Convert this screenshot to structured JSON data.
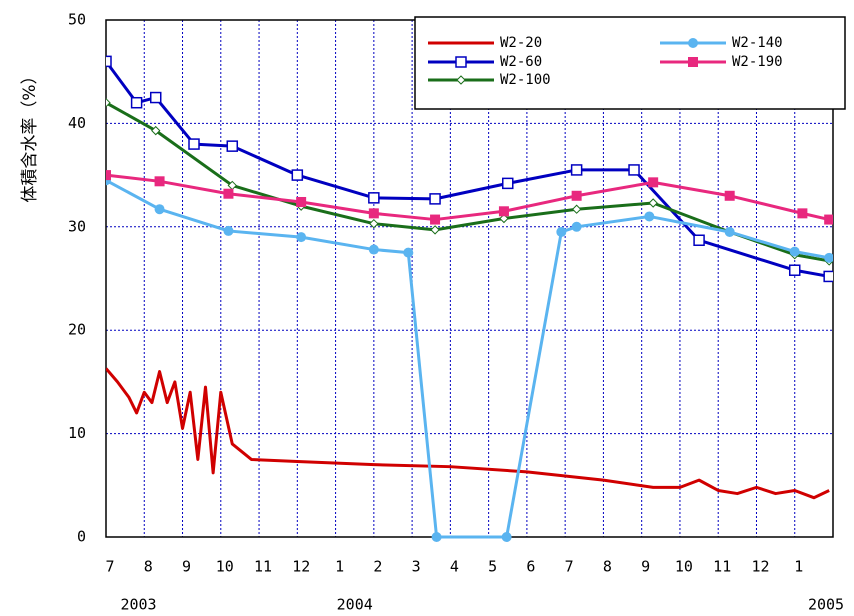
{
  "chart_data": {
    "type": "line",
    "y_label": "体積含水率（%）",
    "xlim": [
      0,
      19
    ],
    "ylim": [
      0,
      50
    ],
    "xticks": [
      {
        "value": 0,
        "label": "7"
      },
      {
        "value": 1,
        "label": "8"
      },
      {
        "value": 2,
        "label": "9"
      },
      {
        "value": 3,
        "label": "10"
      },
      {
        "value": 4,
        "label": "11"
      },
      {
        "value": 5,
        "label": "12"
      },
      {
        "value": 6,
        "label": "1"
      },
      {
        "value": 7,
        "label": "2"
      },
      {
        "value": 8,
        "label": "3"
      },
      {
        "value": 9,
        "label": "4"
      },
      {
        "value": 10,
        "label": "5"
      },
      {
        "value": 11,
        "label": "6"
      },
      {
        "value": 12,
        "label": "7"
      },
      {
        "value": 13,
        "label": "8"
      },
      {
        "value": 14,
        "label": "9"
      },
      {
        "value": 15,
        "label": "10"
      },
      {
        "value": 16,
        "label": "11"
      },
      {
        "value": 17,
        "label": "12"
      },
      {
        "value": 18,
        "label": "1"
      }
    ],
    "yticks": [
      0,
      10,
      20,
      30,
      40,
      50
    ],
    "year_labels": [
      {
        "x": 0.85,
        "label": "2003"
      },
      {
        "x": 6.5,
        "label": "2004"
      },
      {
        "x": 18.9,
        "label": "2005"
      }
    ],
    "grid": true,
    "series": [
      {
        "name": "W2-20",
        "color": "#d00000",
        "marker": "none",
        "x": [
          0,
          0.3,
          0.6,
          0.8,
          1.0,
          1.2,
          1.4,
          1.6,
          1.8,
          2.0,
          2.2,
          2.4,
          2.6,
          2.8,
          3.0,
          3.3,
          3.8,
          5,
          7,
          9,
          11,
          13,
          14.3,
          15,
          15.5,
          16,
          16.5,
          17,
          17.5,
          18,
          18.5,
          18.9
        ],
        "values": [
          16.3,
          15,
          13.5,
          12,
          14,
          13,
          16,
          13,
          15,
          10.5,
          14,
          7.5,
          14.5,
          6.2,
          14,
          9,
          7.5,
          7.3,
          7,
          6.8,
          6.3,
          5.5,
          4.8,
          4.8,
          5.5,
          4.5,
          4.2,
          4.8,
          4.2,
          4.5,
          3.8,
          4.5
        ]
      },
      {
        "name": "W2-60",
        "color": "#0000c0",
        "marker": "open-square",
        "x": [
          0,
          0.8,
          1.3,
          2.3,
          3.3,
          5.0,
          7.0,
          8.6,
          10.5,
          12.3,
          13.8,
          15.5,
          18.0,
          18.9
        ],
        "values": [
          46,
          42,
          42.5,
          38,
          37.8,
          35,
          32.8,
          32.7,
          34.2,
          35.5,
          35.5,
          28.7,
          25.8,
          25.2
        ]
      },
      {
        "name": "W2-100",
        "color": "#1a6e1a",
        "marker": "diamond",
        "x": [
          0,
          1.3,
          3.3,
          5.1,
          7.0,
          8.6,
          10.4,
          12.3,
          14.3,
          16.3,
          18.0,
          18.9
        ],
        "values": [
          42,
          39.3,
          34,
          32,
          30.3,
          29.7,
          30.8,
          31.7,
          32.3,
          29.5,
          27.3,
          26.7
        ]
      },
      {
        "name": "W2-140",
        "color": "#5ab4f0",
        "marker": "filled-circle",
        "x": [
          0,
          1.4,
          3.2,
          5.1,
          7.0,
          7.9,
          8.64,
          10.47,
          11.9,
          12.3,
          14.2,
          16.3,
          18.0,
          18.9
        ],
        "values": [
          34.5,
          31.7,
          29.6,
          29,
          27.8,
          27.5,
          0,
          0,
          29.5,
          30,
          31,
          29.5,
          27.6,
          27
        ]
      },
      {
        "name": "W2-190",
        "color": "#e8287e",
        "marker": "filled-square",
        "x": [
          0,
          1.4,
          3.2,
          5.1,
          7.0,
          8.6,
          10.4,
          12.3,
          14.3,
          16.3,
          18.2,
          18.9
        ],
        "values": [
          35,
          34.4,
          33.2,
          32.4,
          31.3,
          30.7,
          31.5,
          33,
          34.3,
          33,
          31.3,
          30.7
        ]
      }
    ]
  }
}
